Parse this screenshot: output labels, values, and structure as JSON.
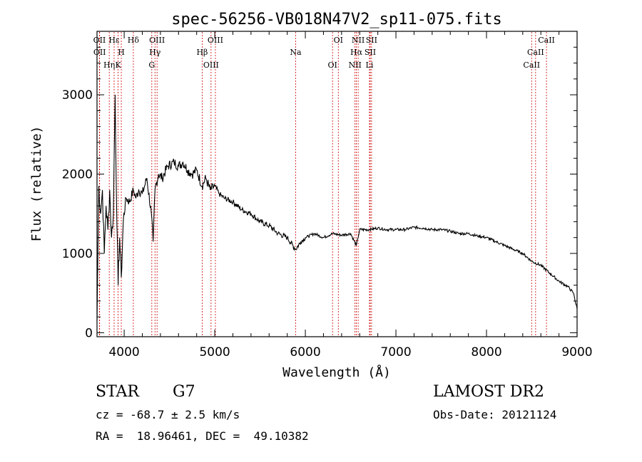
{
  "chart_data": {
    "type": "line",
    "title": "spec-56256-VB018N47V2_sp11-075.fits",
    "xlabel": "Wavelength (Å)",
    "ylabel": "Flux (relative)",
    "xlim": [
      3700,
      9000
    ],
    "ylim": [
      -50,
      3800
    ],
    "xticks": [
      4000,
      5000,
      6000,
      7000,
      8000,
      9000
    ],
    "yticks": [
      0,
      1000,
      2000,
      3000
    ],
    "grid": false,
    "series": [
      {
        "name": "spectrum",
        "x": [
          3700,
          3720,
          3740,
          3760,
          3780,
          3800,
          3820,
          3840,
          3860,
          3880,
          3900,
          3920,
          3933,
          3950,
          3968,
          3990,
          4020,
          4060,
          4101,
          4130,
          4160,
          4200,
          4250,
          4300,
          4320,
          4340,
          4380,
          4420,
          4480,
          4550,
          4600,
          4650,
          4700,
          4750,
          4800,
          4861,
          4900,
          4950,
          5000,
          5050,
          5100,
          5200,
          5300,
          5400,
          5500,
          5600,
          5700,
          5800,
          5893,
          5950,
          6000,
          6100,
          6200,
          6300,
          6400,
          6500,
          6563,
          6600,
          6700,
          6800,
          6900,
          7000,
          7100,
          7200,
          7300,
          7400,
          7500,
          7600,
          7700,
          7800,
          7900,
          8000,
          8100,
          8200,
          8300,
          8400,
          8500,
          8600,
          8700,
          8800,
          8900,
          8960,
          9000
        ],
        "values": [
          150,
          1850,
          1500,
          1800,
          1000,
          1600,
          1300,
          1800,
          1200,
          1500,
          3000,
          1350,
          600,
          1200,
          700,
          1400,
          1700,
          1650,
          1800,
          1700,
          1800,
          1750,
          1950,
          1500,
          1150,
          1800,
          2000,
          1950,
          2100,
          2150,
          2100,
          2150,
          2050,
          2000,
          2050,
          1850,
          1950,
          1800,
          1850,
          1750,
          1700,
          1650,
          1550,
          1500,
          1400,
          1350,
          1250,
          1200,
          1050,
          1150,
          1200,
          1250,
          1200,
          1250,
          1230,
          1250,
          1100,
          1300,
          1300,
          1320,
          1300,
          1300,
          1300,
          1330,
          1320,
          1300,
          1300,
          1280,
          1250,
          1250,
          1220,
          1200,
          1150,
          1100,
          1050,
          1000,
          900,
          850,
          750,
          650,
          580,
          500,
          300
        ]
      }
    ],
    "lines": [
      {
        "label": "OII",
        "x": 3727
      },
      {
        "label": "OII",
        "x": 3729
      },
      {
        "label": "Hη",
        "x": 3835
      },
      {
        "label": "Hε",
        "x": 3889
      },
      {
        "label": "H",
        "x": 3968
      },
      {
        "label": "K",
        "x": 3933
      },
      {
        "label": "Hδ",
        "x": 4101
      },
      {
        "label": "Hγ",
        "x": 4340
      },
      {
        "label": "G",
        "x": 4305
      },
      {
        "label": "OIII",
        "x": 4363
      },
      {
        "label": "Hβ",
        "x": 4861
      },
      {
        "label": "OIII",
        "x": 4959
      },
      {
        "label": "OIII",
        "x": 5007
      },
      {
        "label": "Na",
        "x": 5893
      },
      {
        "label": "OI",
        "x": 6300
      },
      {
        "label": "OI",
        "x": 6364
      },
      {
        "label": "Hα",
        "x": 6563
      },
      {
        "label": "NII",
        "x": 6548
      },
      {
        "label": "NII",
        "x": 6583
      },
      {
        "label": "SII",
        "x": 6716
      },
      {
        "label": "Li",
        "x": 6708
      },
      {
        "label": "SII",
        "x": 6731
      },
      {
        "label": "CaII",
        "x": 8542
      },
      {
        "label": "CaII",
        "x": 8498
      },
      {
        "label": "CaII",
        "x": 8662
      }
    ]
  },
  "info": {
    "object_class": "STAR",
    "subclass": "G7",
    "survey": "LAMOST DR2",
    "redshift": "cz = -68.7 ± 2.5 km/s",
    "obs_date": "Obs-Date: 20121124",
    "coords": "RA =  18.96461, DEC =  49.10382"
  },
  "colors": {
    "line_marker": "#cc0000",
    "spectrum": "#000000"
  }
}
